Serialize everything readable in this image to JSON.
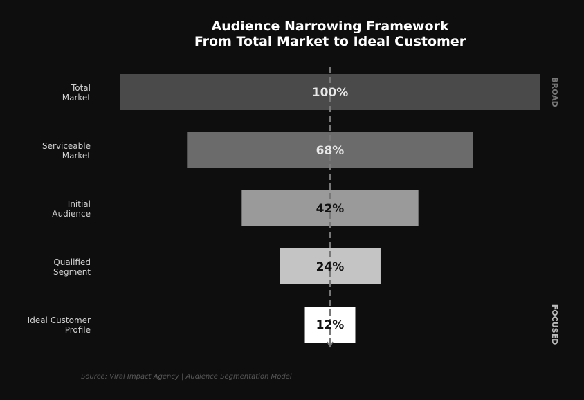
{
  "chart_data": {
    "type": "bar",
    "orientation": "horizontal-funnel",
    "title": "Audience Narrowing Framework",
    "subtitle": "From Total Market to Ideal Customer",
    "categories": [
      "Total\nMarket",
      "Serviceable\nMarket",
      "Initial\nAudience",
      "Qualified\nSegment",
      "Ideal Customer\nProfile"
    ],
    "values": [
      100,
      68,
      42,
      24,
      12
    ],
    "value_labels": [
      "100%",
      "68%",
      "42%",
      "24%",
      "12%"
    ],
    "bar_colors": [
      "#4a4a4a",
      "#6b6b6b",
      "#9a9a9a",
      "#c4c4c4",
      "#ffffff"
    ],
    "label_colors": [
      "#e8e8e8",
      "#e8e8e8",
      "#111111",
      "#111111",
      "#111111"
    ],
    "xlim": [
      0,
      100
    ],
    "side_labels": {
      "top": "BROAD",
      "bottom": "FOCUSED"
    },
    "source": "Source: Viral Impact Agency | Audience Segmentation Model",
    "grid": false
  }
}
